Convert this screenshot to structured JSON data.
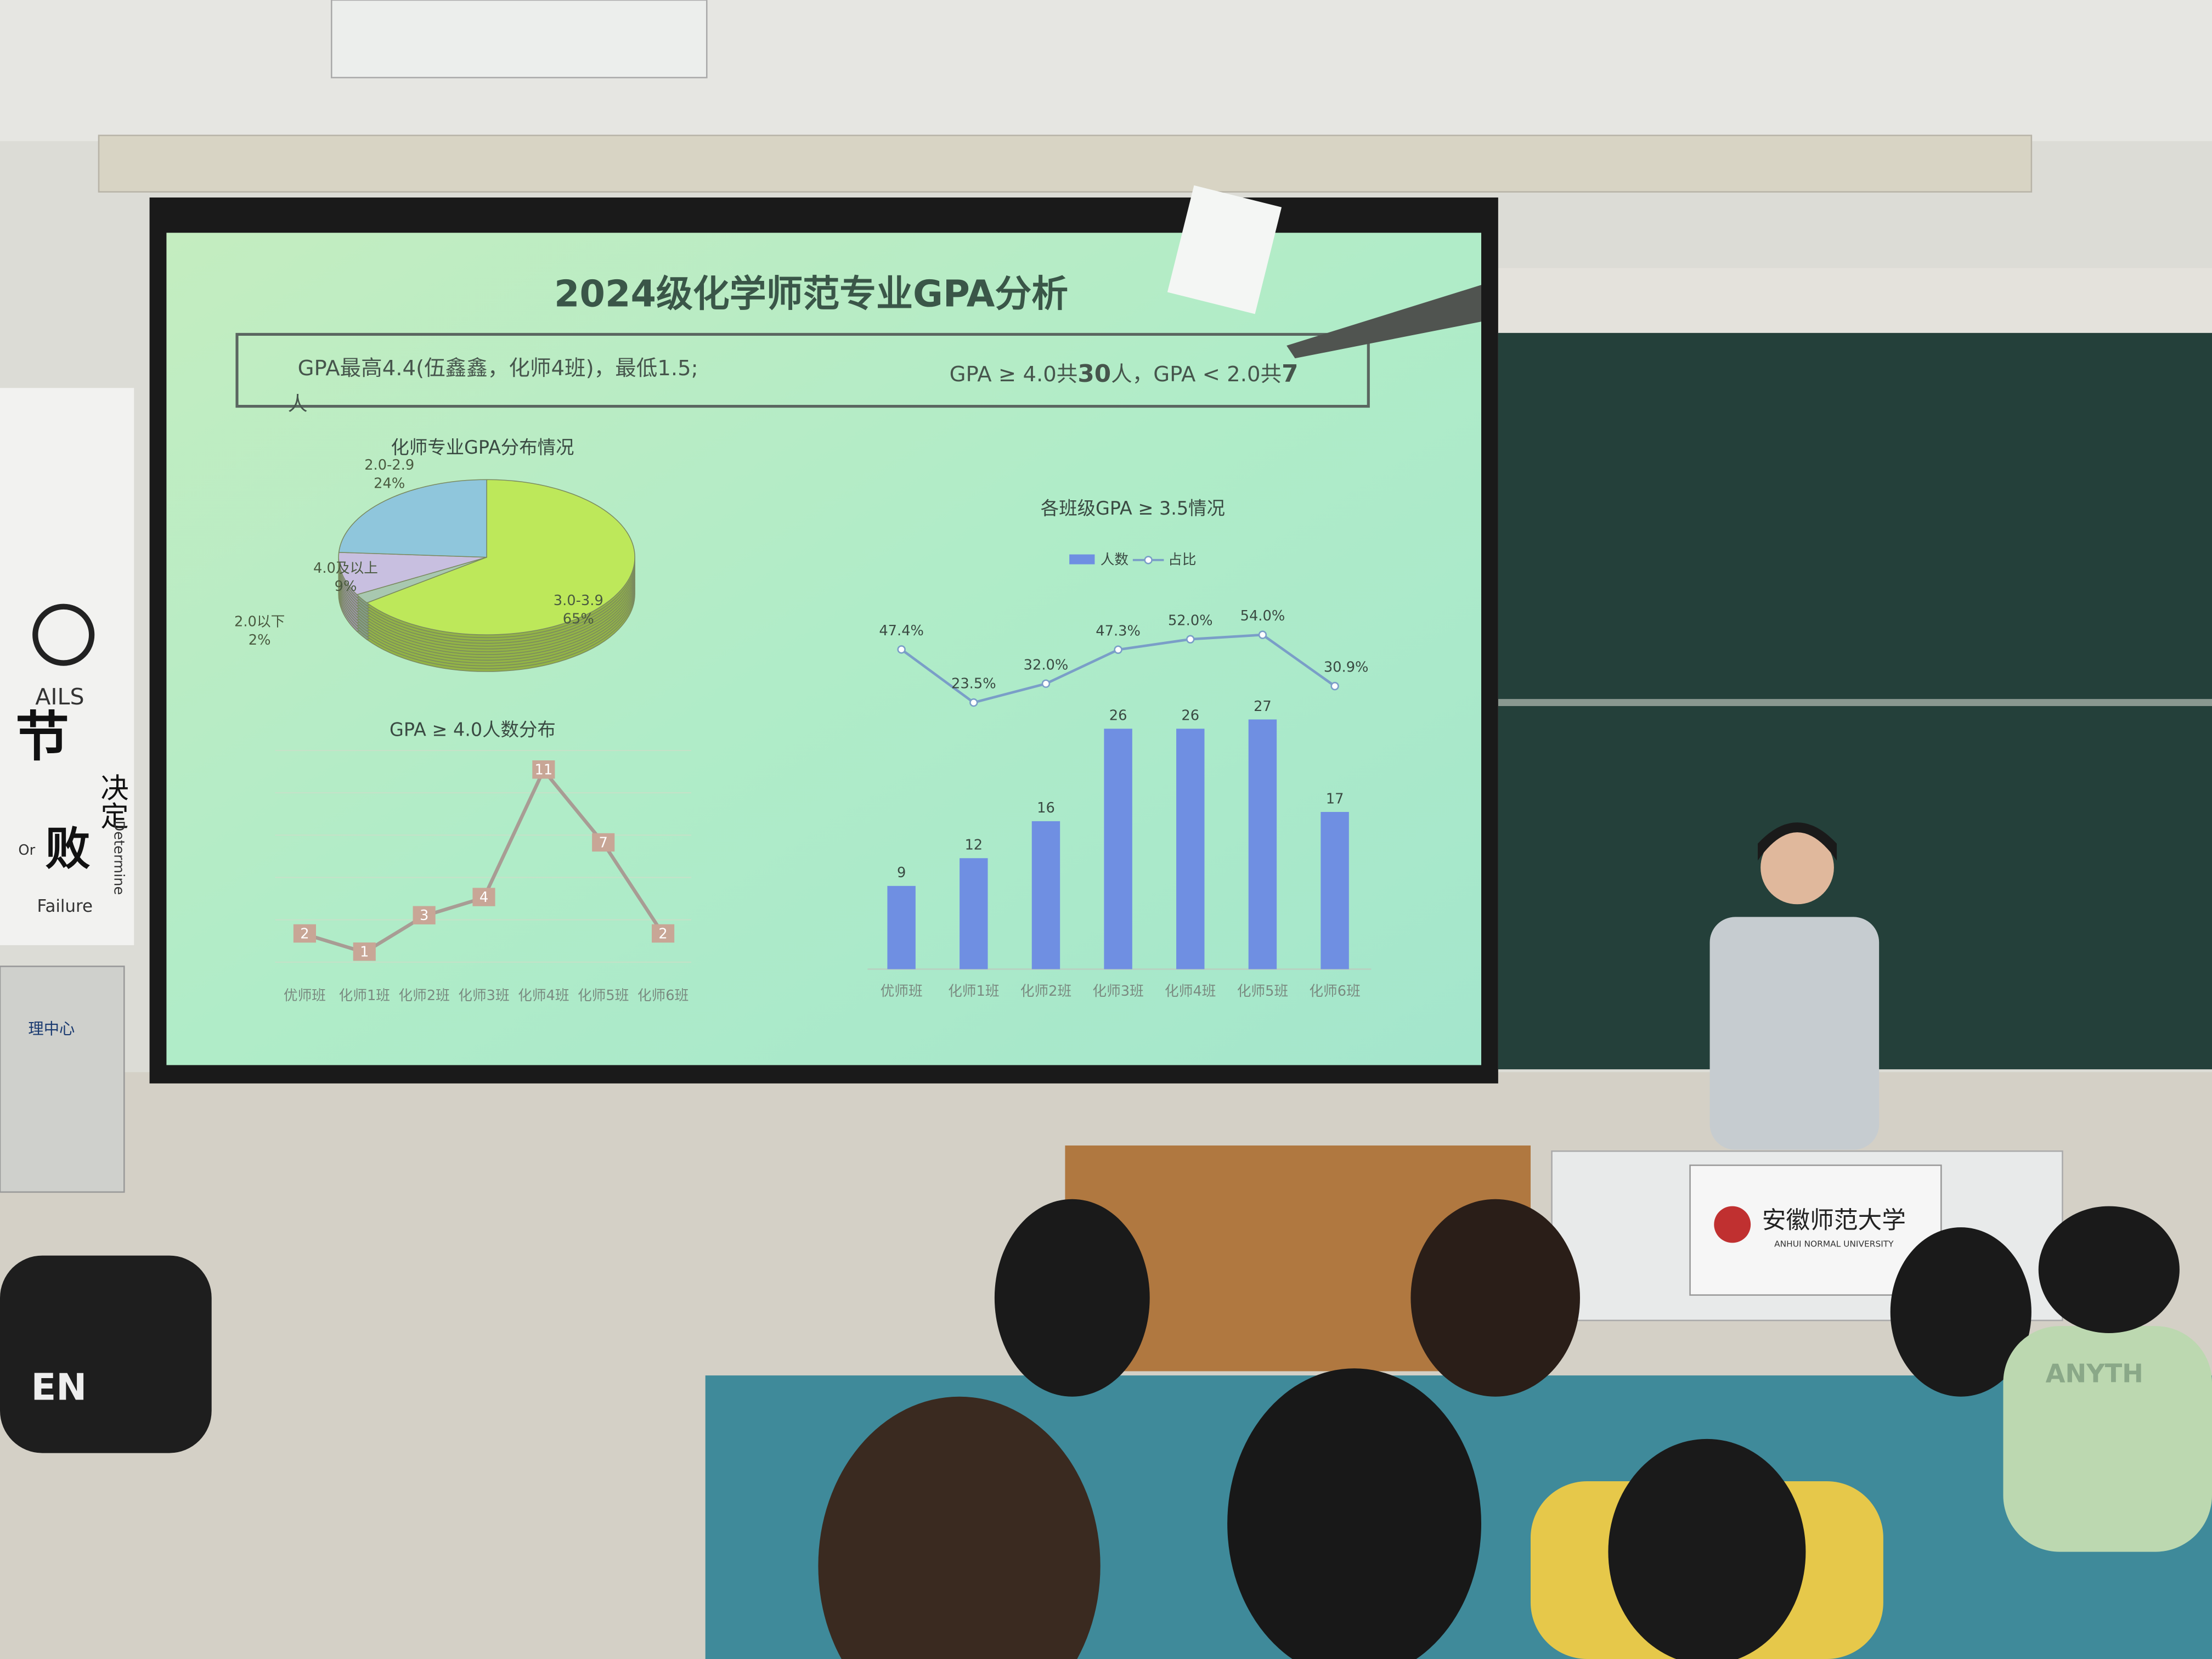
{
  "slide": {
    "title": "2024级化学师范专业GPA分析",
    "summary_left": "GPA最高4.4(伍鑫鑫，化师4班)，最低1.5;",
    "summary_right": [
      "GPA ≥ 4.0共",
      "30",
      "人，GPA < 2.0共",
      "7"
    ],
    "summary_wrap": "人"
  },
  "chart_data": [
    {
      "type": "pie",
      "title": "化师专业GPA分布情况",
      "categories": [
        "3.0-3.9",
        "2.0以下",
        "4.0及以上",
        "2.0-2.9"
      ],
      "values": [
        65,
        2,
        9,
        24
      ],
      "value_labels": [
        "65%",
        "2%",
        "9%",
        "24%"
      ],
      "colors": [
        "#bde85a",
        "#a8c8b0",
        "#c8bfe0",
        "#8fc6dc"
      ]
    },
    {
      "type": "line",
      "title": "GPA ≥ 4.0人数分布",
      "categories": [
        "优师班",
        "化师1班",
        "化师2班",
        "化师3班",
        "化师4班",
        "化师5班",
        "化师6班"
      ],
      "values": [
        2,
        1,
        3,
        4,
        11,
        7,
        2
      ],
      "color": "#a89c94"
    },
    {
      "type": "combo",
      "title": "各班级GPA ≥ 3.5情况",
      "categories": [
        "优师班",
        "化师1班",
        "化师2班",
        "化师3班",
        "化师4班",
        "化师5班",
        "化师6班"
      ],
      "series": [
        {
          "name": "人数",
          "color": "#6f8fe2",
          "values": [
            9,
            12,
            16,
            26,
            26,
            27,
            17
          ]
        },
        {
          "name": "占比",
          "color": "#7a9ec8",
          "values": [
            47.4,
            23.5,
            32.0,
            47.3,
            52.0,
            54.0,
            30.9
          ],
          "value_labels": [
            "47.4%",
            "23.5%",
            "32.0%",
            "47.3%",
            "52.0%",
            "54.0%",
            "30.9%"
          ]
        }
      ]
    }
  ],
  "scene": {
    "poster": [
      "AILS",
      "节",
      "决定",
      "Or",
      "败",
      "Failure",
      "Determine"
    ],
    "cabinet": "理中心",
    "podium": [
      "安徽师范大学",
      "ANHUI NORMAL UNIVERSITY"
    ],
    "shirt": "ANYTH"
  }
}
